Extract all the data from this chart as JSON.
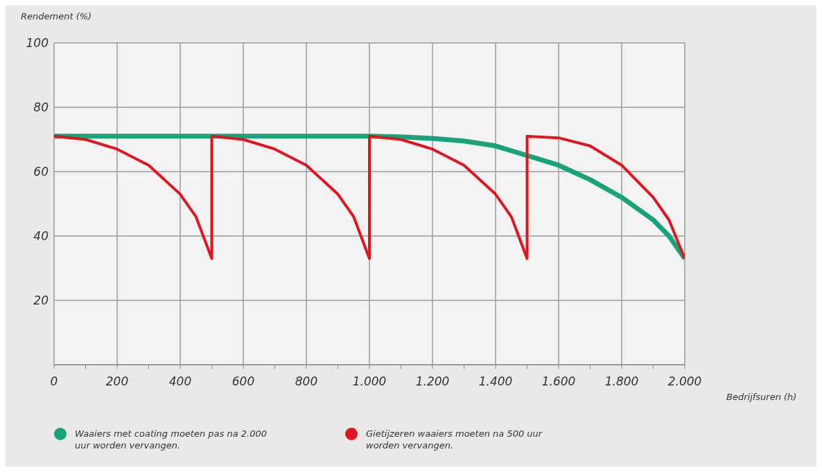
{
  "chart_data": {
    "type": "line",
    "xlabel": "Bedrijfsuren (h)",
    "ylabel": "Rendement (%)",
    "xlim": [
      0,
      2000
    ],
    "ylim": [
      0,
      100
    ],
    "xticks": [
      0,
      {
        "value": 100,
        "label": null
      },
      200,
      {
        "value": 300,
        "label": null
      },
      400,
      {
        "value": 500,
        "label": null
      },
      600,
      {
        "value": 700,
        "label": null
      },
      800,
      {
        "value": 900,
        "label": null
      },
      {
        "value": 1000,
        "label": "1.000"
      },
      {
        "value": 1100,
        "label": null
      },
      {
        "value": 1200,
        "label": "1.200"
      },
      {
        "value": 1300,
        "label": null
      },
      {
        "value": 1400,
        "label": "1.400"
      },
      {
        "value": 1500,
        "label": null
      },
      {
        "value": 1600,
        "label": "1.600"
      },
      {
        "value": 1700,
        "label": null
      },
      {
        "value": 1800,
        "label": "1.800"
      },
      {
        "value": 1900,
        "label": null
      },
      {
        "value": 2000,
        "label": "2.000"
      }
    ],
    "yticks": [
      {
        "value": 0,
        "label": null
      },
      20,
      40,
      60,
      80,
      100
    ],
    "grid": true,
    "legend": "bottom",
    "marker": "none",
    "line_style": "solid",
    "series": [
      {
        "name": "Waaiers met coating moeten pas na 2.000 uur worden vervangen.",
        "color": "#1aa37a",
        "x": [
          0,
          200,
          400,
          600,
          800,
          1000,
          1100,
          1200,
          1300,
          1400,
          1500,
          1600,
          1700,
          1800,
          1900,
          1950,
          2000
        ],
        "values": [
          71,
          71,
          71,
          71,
          71,
          71,
          70.8,
          70.3,
          69.5,
          68,
          65,
          62,
          57.5,
          52,
          45,
          40,
          33
        ]
      },
      {
        "name": "Gietijzeren waaiers moeten na 500 uur worden vervangen.",
        "color": "#e0161e",
        "x": [
          0,
          100,
          200,
          300,
          400,
          450,
          500,
          500,
          600,
          700,
          800,
          900,
          950,
          1000,
          1000,
          1100,
          1200,
          1300,
          1400,
          1450,
          1500,
          1500,
          1600,
          1700,
          1800,
          1900,
          1950,
          2000
        ],
        "values": [
          71,
          70,
          67,
          62,
          53,
          46,
          33,
          71,
          70,
          67,
          62,
          53,
          46,
          33,
          71,
          70,
          67,
          62,
          53,
          46,
          33,
          71,
          70.5,
          68,
          62,
          52,
          45,
          33
        ]
      }
    ]
  }
}
